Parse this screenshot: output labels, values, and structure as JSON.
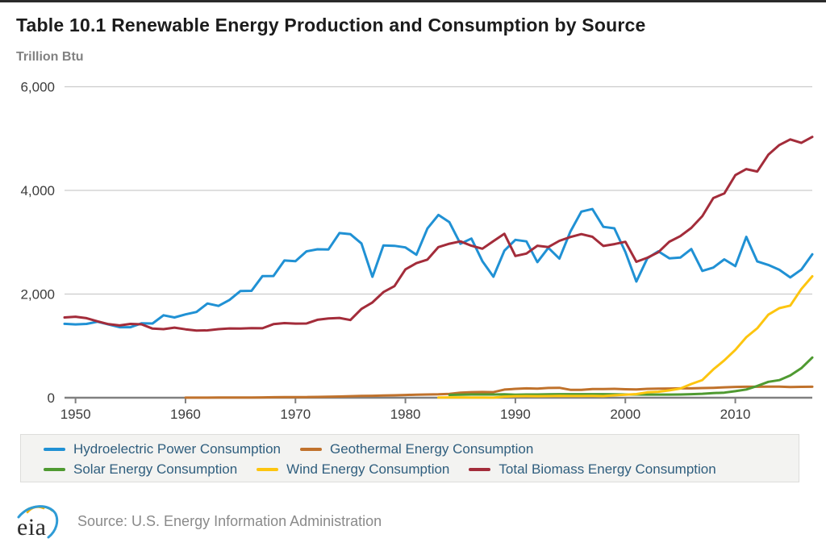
{
  "header": {
    "title": "Table 10.1 Renewable Energy Production and Consumption by Source"
  },
  "footer": {
    "logo_text": "eia",
    "source": "Source: U.S. Energy Information Administration"
  },
  "colors": {
    "hydro": "#2091d4",
    "geothermal": "#c0722c",
    "solar": "#4f9a31",
    "wind": "#fdc50f",
    "biomass": "#a32c3a",
    "gridline": "#cccccc",
    "axis": "#808080",
    "legend_text": "#2f5e7e"
  },
  "chart_data": {
    "type": "line",
    "title": "Table 10.1 Renewable Energy Production and Consumption by Source",
    "xlabel": "",
    "ylabel": "Trillion Btu",
    "x_start": 1949,
    "x_end": 2017,
    "ylim": [
      0,
      6000
    ],
    "grid": "horizontal",
    "legend_position": "bottom-box",
    "y_ticks": [
      {
        "v": 0,
        "label": "0"
      },
      {
        "v": 2000,
        "label": "2,000"
      },
      {
        "v": 4000,
        "label": "4,000"
      },
      {
        "v": 6000,
        "label": "6,000"
      }
    ],
    "x_ticks": [
      {
        "v": 1950,
        "label": "1950"
      },
      {
        "v": 1960,
        "label": "1960"
      },
      {
        "v": 1970,
        "label": "1970"
      },
      {
        "v": 1980,
        "label": "1980"
      },
      {
        "v": 1990,
        "label": "1990"
      },
      {
        "v": 2000,
        "label": "2000"
      },
      {
        "v": 2010,
        "label": "2010"
      }
    ],
    "legend_rows": [
      [
        0,
        1
      ],
      [
        2,
        3,
        4
      ]
    ],
    "series": [
      {
        "name": "Hydroelectric Power Consumption",
        "color": "#2091d4",
        "values": [
          1425,
          1415,
          1424,
          1466,
          1413,
          1360,
          1360,
          1435,
          1432,
          1591,
          1548,
          1608,
          1655,
          1818,
          1771,
          1886,
          2059,
          2062,
          2347,
          2349,
          2648,
          2634,
          2824,
          2864,
          2861,
          3177,
          3155,
          2976,
          2333,
          2937,
          2931,
          2900,
          2758,
          3266,
          3527,
          3386,
          2970,
          3071,
          2635,
          2334,
          2837,
          3046,
          3016,
          2617,
          2892,
          2683,
          3205,
          3590,
          3640,
          3297,
          3268,
          2811,
          2242,
          2689,
          2825,
          2690,
          2703,
          2869,
          2446,
          2511,
          2669,
          2539,
          3103,
          2629,
          2562,
          2469,
          2321,
          2472,
          2767
        ]
      },
      {
        "name": "Geothermal Energy Consumption",
        "color": "#c0722c",
        "values": [
          null,
          null,
          null,
          null,
          null,
          null,
          null,
          null,
          null,
          null,
          null,
          1,
          2,
          2,
          4,
          4,
          4,
          4,
          7,
          9,
          13,
          11,
          12,
          15,
          19,
          24,
          29,
          34,
          38,
          42,
          47,
          53,
          59,
          63,
          66,
          75,
          97,
          107,
          110,
          107,
          157,
          171,
          180,
          176,
          188,
          192,
          152,
          153,
          167,
          168,
          171,
          164,
          159,
          171,
          175,
          178,
          181,
          181,
          186,
          192,
          200,
          208,
          212,
          212,
          214,
          214,
          206,
          210,
          211
        ]
      },
      {
        "name": "Solar Energy Consumption",
        "color": "#4f9a31",
        "values": [
          null,
          null,
          null,
          null,
          null,
          null,
          null,
          null,
          null,
          null,
          null,
          null,
          null,
          null,
          null,
          null,
          null,
          null,
          null,
          null,
          null,
          null,
          null,
          null,
          null,
          null,
          null,
          null,
          null,
          null,
          null,
          null,
          null,
          null,
          null,
          55,
          59,
          62,
          63,
          63,
          66,
          59,
          62,
          63,
          66,
          68,
          68,
          69,
          68,
          68,
          67,
          63,
          62,
          61,
          61,
          61,
          63,
          68,
          76,
          89,
          98,
          126,
          158,
          227,
          307,
          340,
          430,
          570,
          775
        ]
      },
      {
        "name": "Wind Energy Consumption",
        "color": "#fdc50f",
        "values": [
          null,
          null,
          null,
          null,
          null,
          null,
          null,
          null,
          null,
          null,
          null,
          null,
          null,
          null,
          null,
          null,
          null,
          null,
          null,
          null,
          null,
          null,
          null,
          null,
          null,
          null,
          null,
          null,
          null,
          null,
          null,
          null,
          null,
          null,
          3,
          7,
          6,
          4,
          4,
          1,
          22,
          29,
          31,
          30,
          31,
          36,
          33,
          33,
          34,
          31,
          46,
          57,
          70,
          105,
          115,
          142,
          178,
          264,
          341,
          546,
          721,
          923,
          1168,
          1340,
          1601,
          1728,
          1777,
          2096,
          2343
        ]
      },
      {
        "name": "Total Biomass Energy Consumption",
        "color": "#a32c3a",
        "values": [
          1549,
          1562,
          1535,
          1474,
          1419,
          1394,
          1424,
          1416,
          1334,
          1323,
          1353,
          1320,
          1295,
          1300,
          1323,
          1337,
          1335,
          1343,
          1340,
          1419,
          1440,
          1431,
          1432,
          1503,
          1529,
          1540,
          1499,
          1713,
          1838,
          2038,
          2152,
          2476,
          2596,
          2664,
          2906,
          2971,
          3016,
          2932,
          2875,
          3021,
          3163,
          2735,
          2782,
          2932,
          2908,
          3028,
          3101,
          3157,
          3105,
          2927,
          2963,
          3008,
          2622,
          2701,
          2807,
          3010,
          3117,
          3277,
          3503,
          3852,
          3941,
          4294,
          4411,
          4364,
          4688,
          4875,
          4983,
          4916,
          5032
        ]
      }
    ]
  }
}
